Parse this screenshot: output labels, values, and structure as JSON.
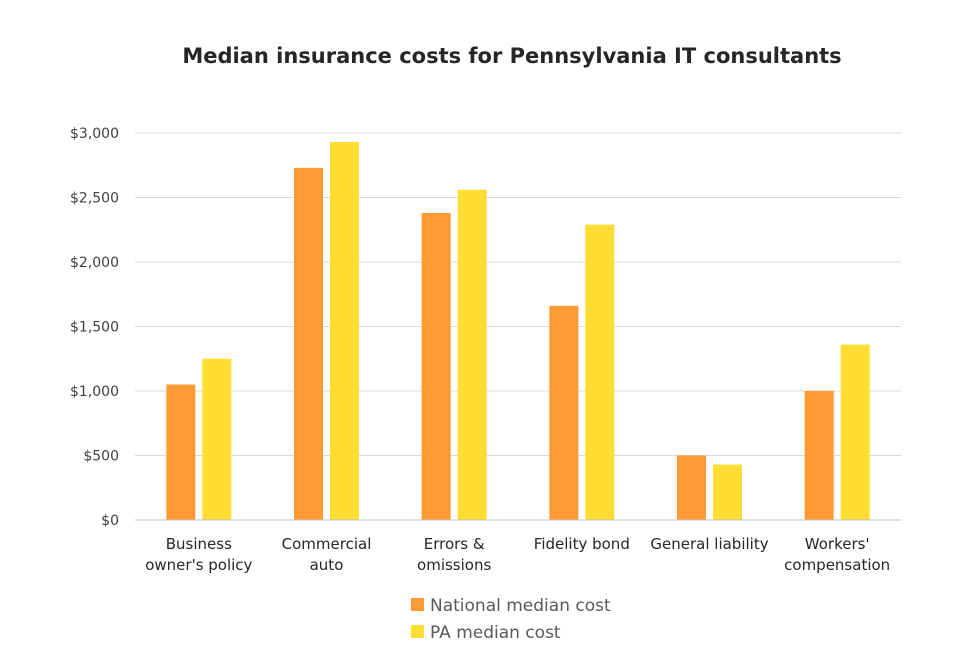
{
  "chart_data": {
    "type": "bar",
    "title": "Median insurance costs for Pennsylvania IT consultants",
    "categories": [
      [
        "Business",
        "owner's policy"
      ],
      [
        "Commercial",
        "auto"
      ],
      [
        "Errors &",
        "omissions"
      ],
      [
        "Fidelity bond"
      ],
      [
        "General liability"
      ],
      [
        "Workers'",
        "compensation"
      ]
    ],
    "series": [
      {
        "name": "National median cost",
        "color": "#FF9933",
        "values": [
          1050,
          2730,
          2380,
          1660,
          500,
          1000
        ]
      },
      {
        "name": "PA median cost",
        "color": "#FFDD33",
        "values": [
          1250,
          2930,
          2560,
          2290,
          430,
          1360
        ]
      }
    ],
    "yticks": [
      "$0",
      "$500",
      "$1,000",
      "$1,500",
      "$2,000",
      "$2,500",
      "$3,000"
    ],
    "ylim": [
      0,
      3000
    ],
    "ystep": 500,
    "xlabel": "",
    "ylabel": "",
    "grid": true,
    "legend_position": "bottom"
  }
}
